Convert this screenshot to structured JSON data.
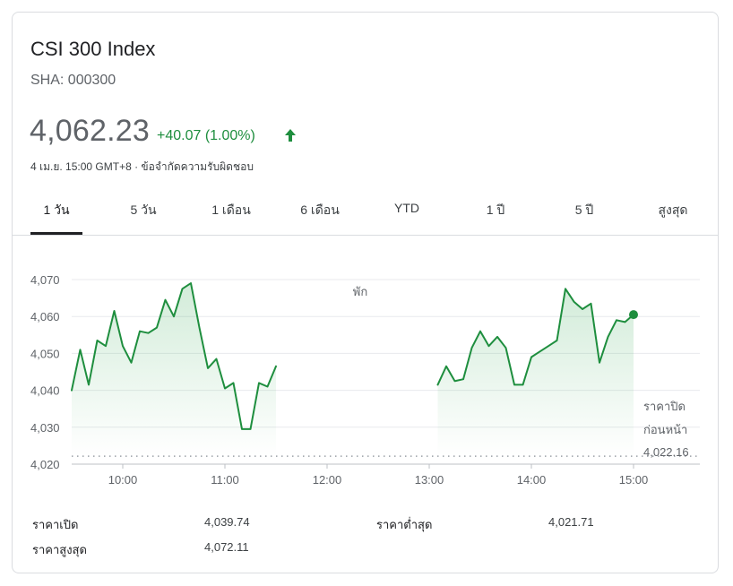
{
  "header": {
    "title": "CSI 300 Index",
    "ticker": "SHA: 000300",
    "price": "4,062.23",
    "change": "+40.07 (1.00%)",
    "timestamp": "4 เม.ย. 15:00 GMT+8 · ข้อจำกัดความรับผิดชอบ"
  },
  "tabs": [
    {
      "label": "1 วัน",
      "active": true
    },
    {
      "label": "5 วัน",
      "active": false
    },
    {
      "label": "1 เดือน",
      "active": false
    },
    {
      "label": "6 เดือน",
      "active": false
    },
    {
      "label": "YTD",
      "active": false
    },
    {
      "label": "1 ปี",
      "active": false
    },
    {
      "label": "5 ปี",
      "active": false
    },
    {
      "label": "สูงสุด",
      "active": false
    }
  ],
  "colors": {
    "line": "#1e8e3e",
    "fill": "#34a853",
    "text": "#5f6368"
  },
  "chart_data": {
    "type": "line",
    "ylim": [
      4020,
      4070
    ],
    "y_ticks": [
      4070,
      4060,
      4050,
      4040,
      4030,
      4020
    ],
    "y_tick_labels": [
      "4,070",
      "4,060",
      "4,050",
      "4,040",
      "4,030",
      "4,020"
    ],
    "x_ticks": [
      "10:00",
      "11:00",
      "12:00",
      "13:00",
      "14:00",
      "15:00"
    ],
    "break_label": "พัก",
    "previous_close": {
      "label_line1": "ราคาปิด",
      "label_line2": "ก่อนหน้า",
      "value": 4022.16,
      "value_label": "4,022.16"
    },
    "series": [
      {
        "points": [
          [
            "09:30",
            4040.0
          ],
          [
            "09:35",
            4051.0
          ],
          [
            "09:40",
            4041.5
          ],
          [
            "09:45",
            4053.5
          ],
          [
            "09:50",
            4052.0
          ],
          [
            "09:55",
            4061.5
          ],
          [
            "10:00",
            4052.0
          ],
          [
            "10:05",
            4047.5
          ],
          [
            "10:10",
            4056.0
          ],
          [
            "10:15",
            4055.5
          ],
          [
            "10:20",
            4057.0
          ],
          [
            "10:25",
            4064.5
          ],
          [
            "10:30",
            4060.0
          ],
          [
            "10:35",
            4067.5
          ],
          [
            "10:40",
            4069.0
          ],
          [
            "10:45",
            4057.0
          ],
          [
            "10:50",
            4046.0
          ],
          [
            "10:55",
            4048.5
          ],
          [
            "11:00",
            4040.5
          ],
          [
            "11:05",
            4042.0
          ],
          [
            "11:10",
            4029.5
          ],
          [
            "11:15",
            4029.5
          ],
          [
            "11:20",
            4042.0
          ],
          [
            "11:25",
            4041.0
          ],
          [
            "11:30",
            4046.5
          ]
        ]
      },
      {
        "points": [
          [
            "13:05",
            4041.5
          ],
          [
            "13:10",
            4046.5
          ],
          [
            "13:15",
            4042.5
          ],
          [
            "13:20",
            4043.0
          ],
          [
            "13:25",
            4051.5
          ],
          [
            "13:30",
            4056.0
          ],
          [
            "13:35",
            4052.0
          ],
          [
            "13:40",
            4054.5
          ],
          [
            "13:45",
            4051.5
          ],
          [
            "13:50",
            4041.5
          ],
          [
            "13:55",
            4041.5
          ],
          [
            "14:00",
            4049.0
          ],
          [
            "14:05",
            4050.5
          ],
          [
            "14:10",
            4052.0
          ],
          [
            "14:15",
            4053.5
          ],
          [
            "14:20",
            4067.5
          ],
          [
            "14:25",
            4064.0
          ],
          [
            "14:30",
            4062.0
          ],
          [
            "14:35",
            4063.5
          ],
          [
            "14:40",
            4047.5
          ],
          [
            "14:45",
            4054.5
          ],
          [
            "14:50",
            4059.0
          ],
          [
            "14:55",
            4058.5
          ],
          [
            "15:00",
            4060.5
          ]
        ]
      }
    ]
  },
  "stats": [
    {
      "label": "ราคาเปิด",
      "value": "4,039.74"
    },
    {
      "label": "ราคาสูงสุด",
      "value": "4,072.11"
    },
    {
      "label": "ราคาต่ำสุด",
      "value": "4,021.71"
    }
  ]
}
